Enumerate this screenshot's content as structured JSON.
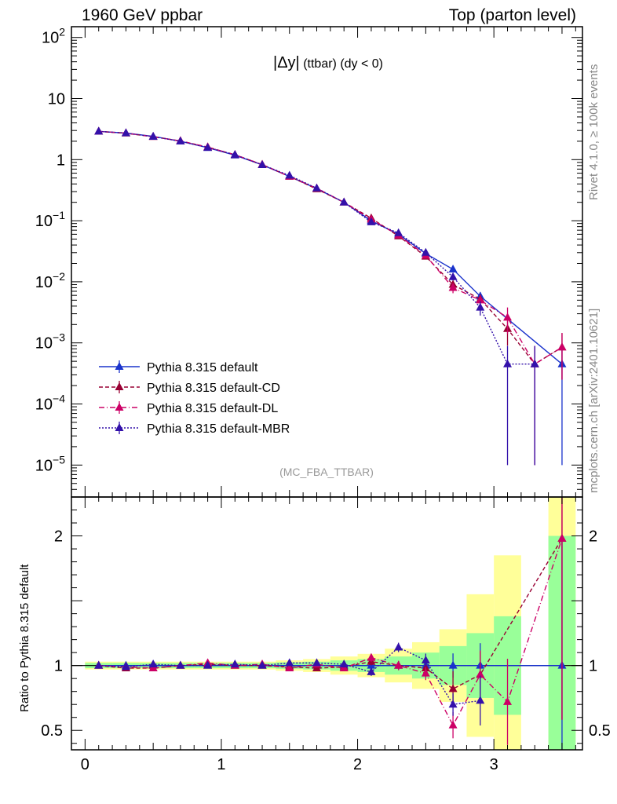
{
  "header": {
    "left": "1960 GeV ppbar",
    "right": "Top (parton level)"
  },
  "side_labels": {
    "rivet": "Rivet 4.1.0, ≥ 100k events",
    "source": "mcplots.cern.ch [arXiv:2401.10621]"
  },
  "chart_data": {
    "type": "line",
    "title": "|Δy| (ttbar) (dy < 0)",
    "title_main": "|Δy|",
    "title_sub": " (ttbar) (dy < 0)",
    "analysis_tag": "(MC_FBA_TTBAR)",
    "xlim": [
      -0.1,
      3.65
    ],
    "ylim_log": [
      3e-06,
      150
    ],
    "ratio_ylim": [
      0.35,
      2.3
    ],
    "ratio_ylabel": "Ratio to Pythia 8.315 default",
    "x_ticks": [
      0,
      1,
      2,
      3
    ],
    "x_tick_labels": [
      "0",
      "1",
      "2",
      "3"
    ],
    "y_ticks": [
      {
        "value": 100,
        "base": "10",
        "exp": "2"
      },
      {
        "value": 10,
        "base": "10",
        "exp": ""
      },
      {
        "value": 1,
        "base": "1",
        "exp": ""
      },
      {
        "value": 0.1,
        "base": "10",
        "exp": "−1"
      },
      {
        "value": 0.01,
        "base": "10",
        "exp": "−2"
      },
      {
        "value": 0.001,
        "base": "10",
        "exp": "−3"
      },
      {
        "value": 0.0001,
        "base": "10",
        "exp": "−4"
      },
      {
        "value": 1e-05,
        "base": "10",
        "exp": "−5"
      }
    ],
    "ratio_ticks": [
      {
        "value": 0.5,
        "label": "0.5"
      },
      {
        "value": 1,
        "label": "1"
      },
      {
        "value": 2,
        "label": "2"
      }
    ],
    "x": [
      0.1,
      0.3,
      0.5,
      0.7,
      0.9,
      1.1,
      1.3,
      1.5,
      1.7,
      1.9,
      2.1,
      2.3,
      2.5,
      2.7,
      2.9,
      3.1,
      3.3,
      3.5
    ],
    "series": [
      {
        "name": "Pythia 8.315 default",
        "color": "#1a33cc",
        "dash": "",
        "values": [
          2.9,
          2.72,
          2.4,
          2.0,
          1.57,
          1.18,
          0.82,
          0.53,
          0.335,
          0.2,
          0.1,
          0.06,
          0.029,
          0.016,
          0.0058,
          null,
          null,
          0.00045
        ],
        "errors": [
          0.03,
          0.03,
          0.03,
          0.02,
          0.02,
          0.015,
          0.01,
          0.008,
          0.006,
          0.005,
          0.003,
          0.002,
          0.0015,
          0.0015,
          0.001,
          null,
          null,
          0.00044
        ],
        "ratio": [
          1.0,
          1.0,
          1.0,
          1.0,
          1.0,
          1.0,
          1.0,
          1.0,
          1.0,
          1.0,
          1.0,
          1.0,
          1.0,
          1.0,
          1.0,
          null,
          null,
          1.0
        ]
      },
      {
        "name": "Pythia 8.315 default-CD",
        "color": "#990033",
        "dash": "5,3",
        "values": [
          2.9,
          2.7,
          2.37,
          2.02,
          1.6,
          1.2,
          0.83,
          0.53,
          0.33,
          0.2,
          0.11,
          0.056,
          0.026,
          0.009,
          0.0052,
          0.0017,
          0.00045,
          0.00085
        ],
        "errors": [
          0.03,
          0.03,
          0.03,
          0.02,
          0.02,
          0.015,
          0.01,
          0.008,
          0.006,
          0.005,
          0.003,
          0.002,
          0.0015,
          0.0015,
          0.001,
          0.0008,
          0.00044,
          0.0006
        ],
        "ratio": [
          1.0,
          0.98,
          0.98,
          1.0,
          1.01,
          1.0,
          1.0,
          0.99,
          0.98,
          0.99,
          1.03,
          1.0,
          0.98,
          0.82,
          0.93,
          null,
          null,
          1.98
        ]
      },
      {
        "name": "Pythia 8.315 default-DL",
        "color": "#cc0066",
        "dash": "7,3,1,3",
        "values": [
          2.9,
          2.72,
          2.37,
          2.02,
          1.6,
          1.2,
          0.83,
          0.53,
          0.34,
          0.2,
          0.105,
          0.058,
          0.027,
          0.008,
          0.005,
          0.0026,
          0.00045,
          0.00085
        ],
        "errors": [
          0.03,
          0.03,
          0.03,
          0.02,
          0.02,
          0.015,
          0.01,
          0.008,
          0.006,
          0.005,
          0.003,
          0.002,
          0.0015,
          0.0015,
          0.001,
          0.0012,
          0.00044,
          0.0006
        ],
        "ratio": [
          1.0,
          0.99,
          0.98,
          1.0,
          1.02,
          1.0,
          1.01,
          0.98,
          1.01,
          0.98,
          1.06,
          1.0,
          0.94,
          0.54,
          0.93,
          0.72,
          null,
          1.98
        ]
      },
      {
        "name": "Pythia 8.315 default-MBR",
        "color": "#3311aa",
        "dash": "2,2",
        "values": [
          2.9,
          2.72,
          2.38,
          2.0,
          1.57,
          1.2,
          0.82,
          0.55,
          0.34,
          0.2,
          0.095,
          0.063,
          0.03,
          0.012,
          0.0038,
          0.00045,
          0.00045,
          null
        ],
        "errors": [
          0.03,
          0.03,
          0.03,
          0.02,
          0.02,
          0.015,
          0.01,
          0.008,
          0.006,
          0.005,
          0.003,
          0.002,
          0.0015,
          0.0015,
          0.001,
          0.00044,
          0.00044,
          null
        ],
        "ratio": [
          1.0,
          0.99,
          1.01,
          1.0,
          1.0,
          1.01,
          1.0,
          1.02,
          1.02,
          1.01,
          0.95,
          1.14,
          1.04,
          0.7,
          0.73,
          null,
          null,
          null
        ]
      }
    ],
    "bands": {
      "yellow_color": "#ffff99",
      "green_color": "#99ff99",
      "bins": [
        {
          "x0": 0.0,
          "x1": 0.2,
          "g": 0.02,
          "y": 0.03
        },
        {
          "x0": 0.2,
          "x1": 0.4,
          "g": 0.02,
          "y": 0.03
        },
        {
          "x0": 0.4,
          "x1": 0.6,
          "g": 0.02,
          "y": 0.03
        },
        {
          "x0": 0.6,
          "x1": 0.8,
          "g": 0.02,
          "y": 0.03
        },
        {
          "x0": 0.8,
          "x1": 1.0,
          "g": 0.02,
          "y": 0.03
        },
        {
          "x0": 1.0,
          "x1": 1.2,
          "g": 0.02,
          "y": 0.03
        },
        {
          "x0": 1.2,
          "x1": 1.4,
          "g": 0.02,
          "y": 0.03
        },
        {
          "x0": 1.4,
          "x1": 1.6,
          "g": 0.025,
          "y": 0.04
        },
        {
          "x0": 1.6,
          "x1": 1.8,
          "g": 0.03,
          "y": 0.05
        },
        {
          "x0": 1.8,
          "x1": 2.0,
          "g": 0.04,
          "y": 0.07
        },
        {
          "x0": 2.0,
          "x1": 2.2,
          "g": 0.05,
          "y": 0.09
        },
        {
          "x0": 2.2,
          "x1": 2.4,
          "g": 0.07,
          "y": 0.13
        },
        {
          "x0": 2.4,
          "x1": 2.6,
          "g": 0.1,
          "y": 0.18
        },
        {
          "x0": 2.6,
          "x1": 2.8,
          "g": 0.15,
          "y": 0.28
        },
        {
          "x0": 2.8,
          "x1": 3.0,
          "g": 0.25,
          "y": 0.55
        },
        {
          "x0": 3.0,
          "x1": 3.2,
          "g": 0.38,
          "y": 0.85
        },
        {
          "x0": 3.4,
          "x1": 3.6,
          "g": 1.0,
          "y": 1.4
        }
      ]
    }
  }
}
